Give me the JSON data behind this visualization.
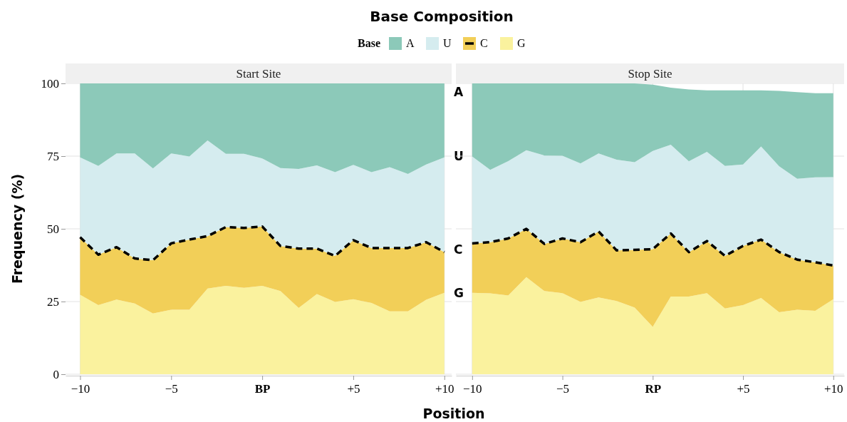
{
  "chart_data": [
    {
      "type": "area",
      "title": "Base Composition",
      "subtitle": "Start Site",
      "xlabel": "Position",
      "ylabel": "Frequency (%)",
      "legend_title": "Base",
      "legend": "top",
      "stacked": true,
      "grid": true,
      "x": [
        -10,
        -9,
        -8,
        -7,
        -6,
        -5,
        -4,
        -3,
        -2,
        -1,
        0,
        1,
        2,
        3,
        4,
        5,
        6,
        7,
        8,
        9,
        10
      ],
      "xlim": [
        -10.8,
        10.4
      ],
      "ylim": [
        0,
        100
      ],
      "xticks": [
        {
          "value": -10,
          "label": "−10"
        },
        {
          "value": -5,
          "label": "−5"
        },
        {
          "value": 0,
          "label": "BP"
        },
        {
          "value": 5,
          "label": "+5"
        },
        {
          "value": 10,
          "label": "+10"
        }
      ],
      "yticks": [
        0,
        25,
        50,
        75,
        100
      ],
      "series": [
        {
          "name": "G",
          "color": "#faf29e",
          "values": [
            27.3,
            23.8,
            25.7,
            24.3,
            20.9,
            22.2,
            22.2,
            29.5,
            30.4,
            29.7,
            30.4,
            28.6,
            22.8,
            27.6,
            24.9,
            25.8,
            24.5,
            21.6,
            21.6,
            25.6,
            28.0
          ]
        },
        {
          "name": "C",
          "color": "#f2cf58",
          "line_style": "dashed",
          "values": [
            19.8,
            17.3,
            18.0,
            15.5,
            18.3,
            22.8,
            24.1,
            18.0,
            20.2,
            20.6,
            20.4,
            15.5,
            20.4,
            15.6,
            15.8,
            20.3,
            18.9,
            21.8,
            21.8,
            19.8,
            14.0
          ]
        },
        {
          "name": "U",
          "color": "#d5ecef",
          "values": [
            27.5,
            30.5,
            32.2,
            36.1,
            31.6,
            30.9,
            28.6,
            32.9,
            25.2,
            25.5,
            23.4,
            26.8,
            27.4,
            28.6,
            28.8,
            25.9,
            26.1,
            27.8,
            25.5,
            26.7,
            32.6
          ]
        },
        {
          "name": "A",
          "color": "#8cc9b9",
          "values": [
            25.4,
            28.4,
            24.1,
            24.1,
            29.2,
            24.1,
            25.1,
            19.6,
            24.2,
            24.2,
            25.8,
            29.1,
            29.4,
            28.2,
            30.5,
            28.0,
            30.5,
            28.8,
            31.1,
            27.9,
            25.4
          ]
        }
      ],
      "annotations": [
        "A",
        "U",
        "C",
        "G"
      ]
    },
    {
      "type": "area",
      "subtitle": "Stop Site",
      "stacked": true,
      "grid": true,
      "tick_labels": "x",
      "x": [
        -10,
        -9,
        -8,
        -7,
        -6,
        -5,
        -4,
        -3,
        -2,
        -1,
        0,
        1,
        2,
        3,
        4,
        5,
        6,
        7,
        8,
        9,
        10
      ],
      "xlim": [
        -10.9,
        10.6
      ],
      "ylim": [
        0,
        100
      ],
      "xticks": [
        {
          "value": -10,
          "label": "−10"
        },
        {
          "value": -5,
          "label": "−5"
        },
        {
          "value": 0,
          "label": "RP"
        },
        {
          "value": 5,
          "label": "+5"
        },
        {
          "value": 10,
          "label": "+10"
        }
      ],
      "yticks": [
        0,
        25,
        50,
        75,
        100
      ],
      "series": [
        {
          "color": "#faf29e",
          "values": [
            28.0,
            27.8,
            27.1,
            33.4,
            28.6,
            27.9,
            24.9,
            26.4,
            25.2,
            22.9,
            16.3,
            26.7,
            26.7,
            27.9,
            22.6,
            23.8,
            26.2,
            21.3,
            22.2,
            21.8,
            25.8
          ]
        },
        {
          "color": "#f2cf58",
          "line_style": "dashed",
          "values": [
            17.0,
            17.6,
            19.6,
            16.6,
            16.2,
            18.8,
            20.5,
            22.7,
            17.4,
            19.9,
            26.7,
            21.7,
            15.3,
            17.9,
            18.1,
            20.3,
            20.1,
            20.7,
            17.2,
            16.7,
            11.6
          ]
        },
        {
          "color": "#d5ecef",
          "values": [
            29.9,
            24.9,
            26.6,
            27.0,
            30.4,
            28.4,
            27.1,
            26.8,
            31.2,
            30.1,
            33.8,
            30.5,
            31.2,
            30.7,
            30.9,
            28.0,
            32.0,
            29.5,
            27.8,
            29.2,
            30.4
          ]
        },
        {
          "color": "#8cc9b9",
          "values": [
            25.1,
            29.7,
            26.7,
            23.0,
            24.8,
            24.9,
            27.5,
            24.1,
            26.2,
            27.1,
            22.8,
            19.6,
            24.7,
            21.1,
            26.0,
            25.5,
            19.3,
            25.9,
            29.8,
            28.9,
            28.8
          ]
        }
      ]
    }
  ]
}
